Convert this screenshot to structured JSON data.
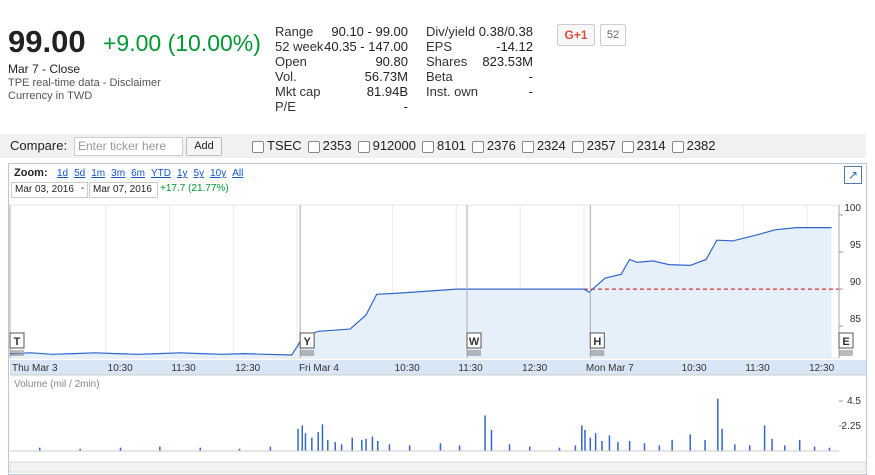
{
  "quote": {
    "price": "99.00",
    "change": "+9.00 (10.00%)",
    "date": "Mar 7 - Close",
    "source": "TPE real-time data - ",
    "disclaimer": "Disclaimer",
    "currency": "Currency in TWD"
  },
  "stats": [
    [
      [
        "Range",
        "90.10 - 99.00"
      ],
      [
        "52 week",
        "40.35 - 147.00"
      ],
      [
        "Open",
        "90.80"
      ],
      [
        "Vol.",
        "56.73M"
      ],
      [
        "Mkt cap",
        "81.94B"
      ],
      [
        "P/E",
        "-"
      ]
    ],
    [
      [
        "Div/yield",
        "0.38/0.38"
      ],
      [
        "EPS",
        "-14.12"
      ],
      [
        "Shares",
        "823.53M"
      ],
      [
        "Beta",
        "-"
      ],
      [
        "Inst. own",
        "-"
      ]
    ]
  ],
  "social": {
    "button": "G+1",
    "count": "52"
  },
  "compare": {
    "label": "Compare:",
    "placeholder": "Enter ticker here",
    "button": "Add",
    "tickers": [
      "TSEC",
      "2353",
      "912000",
      "8101",
      "2376",
      "2324",
      "2357",
      "2314",
      "2382"
    ]
  },
  "zoom": {
    "label": "Zoom:",
    "options": [
      "1d",
      "5d",
      "1m",
      "3m",
      "6m",
      "YTD",
      "1y",
      "5y",
      "10y",
      "All"
    ]
  },
  "range": {
    "from": "Mar 03, 2016",
    "separator": "-",
    "to": "Mar 07, 2016",
    "change": "+17.7 (21.77%)"
  },
  "chart_data": [
    {
      "type": "line",
      "color": "#3366cc",
      "fill": "#e6f0fa",
      "x": [
        0,
        20,
        40,
        60,
        80,
        100,
        120,
        140,
        160,
        180,
        200,
        220,
        240,
        265,
        270,
        275,
        290,
        320,
        335,
        345,
        360,
        380,
        400,
        420,
        540,
        545,
        552,
        560,
        575,
        583,
        590,
        605,
        620,
        640,
        655,
        665,
        680,
        700,
        720,
        740,
        773
      ],
      "values": [
        81.3,
        81.4,
        81.2,
        81.3,
        81.4,
        81.3,
        81.2,
        81.3,
        81.4,
        81.3,
        81.2,
        81.3,
        81.2,
        81.1,
        82.2,
        83.5,
        84.3,
        84.6,
        86.5,
        89.3,
        89.4,
        89.6,
        89.8,
        90.0,
        90.0,
        89.6,
        90.5,
        91.5,
        92.0,
        94.0,
        93.6,
        93.8,
        93.3,
        93.2,
        94.0,
        96.6,
        96.5,
        97.2,
        98.0,
        98.3,
        98.3
      ],
      "xlim": [
        0,
        780
      ],
      "xticks": [
        {
          "value": 0,
          "label": "Thu Mar 3"
        },
        {
          "value": 90,
          "label": "10:30"
        },
        {
          "value": 150,
          "label": "11:30"
        },
        {
          "value": 210,
          "label": "12:30"
        },
        {
          "value": 270,
          "label": "Fri Mar 4"
        },
        {
          "value": 360,
          "label": "10:30"
        },
        {
          "value": 420,
          "label": "11:30"
        },
        {
          "value": 480,
          "label": "12:30"
        },
        {
          "value": 540,
          "label": "Mon Mar 7"
        },
        {
          "value": 630,
          "label": "10:30"
        },
        {
          "value": 690,
          "label": "11:30"
        },
        {
          "value": 750,
          "label": "12:30"
        }
      ],
      "ylim": [
        80.7,
        101.35
      ],
      "yticks": [
        85,
        90,
        95,
        100
      ],
      "reference": {
        "value": 90,
        "x": [
          540,
          780
        ],
        "color": "#cc0000"
      },
      "markers": [
        {
          "label": "T",
          "x": 0
        },
        {
          "label": "Y",
          "x": 273
        },
        {
          "label": "W",
          "x": 430
        },
        {
          "label": "H",
          "x": 546
        },
        {
          "label": "E",
          "x": 780
        }
      ]
    },
    {
      "type": "bar",
      "title": "Volume (mil / 2min)",
      "color": "#3366cc",
      "x": [
        28,
        66,
        104,
        141,
        179,
        216,
        245,
        271,
        275,
        278,
        284,
        290,
        294,
        299,
        306,
        312,
        322,
        331,
        335,
        341,
        346,
        357,
        376,
        405,
        423,
        447,
        453,
        470,
        489,
        517,
        532,
        538,
        541,
        546,
        551,
        557,
        564,
        572,
        583,
        597,
        611,
        623,
        640,
        654,
        666,
        670,
        682,
        696,
        710,
        717,
        729,
        743,
        757,
        771
      ],
      "values": [
        0.3,
        0.2,
        0.3,
        0.4,
        0.3,
        0.2,
        0.4,
        2.0,
        2.3,
        1.6,
        1.2,
        1.7,
        2.4,
        1.0,
        0.8,
        0.6,
        1.2,
        1.0,
        1.1,
        1.3,
        0.9,
        0.6,
        0.5,
        0.7,
        0.5,
        3.2,
        1.9,
        0.6,
        0.4,
        0.3,
        0.5,
        2.3,
        1.9,
        1.2,
        1.6,
        0.9,
        1.4,
        0.8,
        0.9,
        0.7,
        0.5,
        1.0,
        1.5,
        1.0,
        4.7,
        2.0,
        0.6,
        0.5,
        2.3,
        1.1,
        0.5,
        1.0,
        0.4,
        0.3
      ],
      "xlim": [
        0,
        780
      ],
      "ylim": [
        0,
        4.86
      ],
      "yticks": [
        2.25,
        4.5
      ]
    }
  ]
}
